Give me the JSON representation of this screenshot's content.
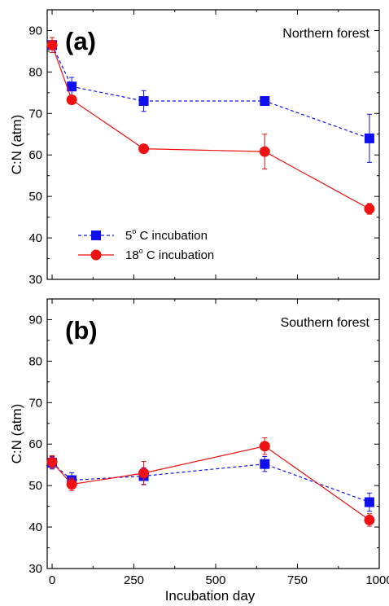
{
  "colors": {
    "series_5C": "#1010ee",
    "series_18C": "#ee1111"
  },
  "chart_data": [
    {
      "type": "line",
      "panel_label": "(a)",
      "title": "Northern forest",
      "xlabel": "Incubation day",
      "ylabel": "C:N (atm)",
      "xlim": [
        -15,
        1000
      ],
      "ylim": [
        30,
        95
      ],
      "xticks": [
        0,
        250,
        500,
        750,
        1000
      ],
      "yticks": [
        30,
        40,
        50,
        60,
        70,
        80,
        90
      ],
      "legend": {
        "position": "bottom-left",
        "items": [
          {
            "deg": "5",
            "text": " C incubation"
          },
          {
            "deg": "18",
            "text": " C incubation"
          }
        ]
      },
      "series": [
        {
          "name": "5° C incubation",
          "x": [
            0,
            60,
            280,
            650,
            970
          ],
          "y": [
            86.5,
            76.5,
            73.0,
            73.0,
            64.0
          ],
          "err": [
            1.0,
            2.2,
            2.5,
            0.5,
            5.8
          ]
        },
        {
          "name": "18° C incubation",
          "x": [
            0,
            60,
            280,
            650,
            970
          ],
          "y": [
            86.5,
            73.3,
            61.5,
            60.8,
            47.0
          ],
          "err": [
            1.8,
            0.8,
            0.8,
            4.2,
            1.3
          ]
        }
      ]
    },
    {
      "type": "line",
      "panel_label": "(b)",
      "title": "Southern forest",
      "xlabel": "Incubation day",
      "ylabel": "C:N (atm)",
      "xlim": [
        -15,
        1000
      ],
      "ylim": [
        30,
        95
      ],
      "xticks": [
        0,
        250,
        500,
        750,
        1000
      ],
      "yticks": [
        30,
        40,
        50,
        60,
        70,
        80,
        90
      ],
      "series": [
        {
          "name": "5° C incubation",
          "x": [
            0,
            60,
            280,
            650,
            970
          ],
          "y": [
            55.5,
            51.3,
            52.3,
            55.2,
            46.0
          ],
          "err": [
            1.5,
            1.8,
            2.0,
            1.8,
            2.2
          ]
        },
        {
          "name": "18° C incubation",
          "x": [
            0,
            60,
            280,
            650,
            970
          ],
          "y": [
            55.7,
            50.3,
            53.0,
            59.5,
            41.7
          ],
          "err": [
            1.5,
            1.5,
            2.8,
            2.0,
            1.5
          ]
        }
      ]
    }
  ],
  "shared_xlabel": "Incubation day"
}
